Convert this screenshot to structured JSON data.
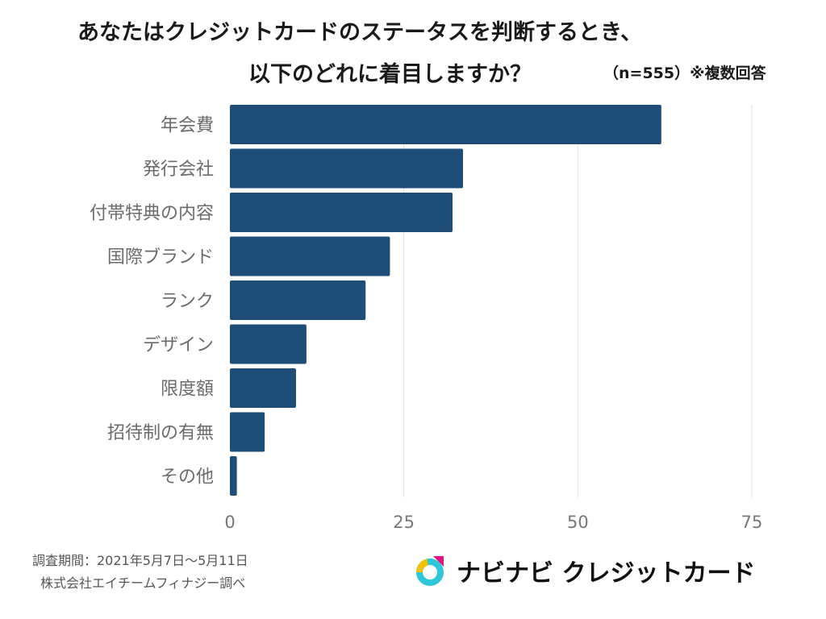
{
  "title": {
    "line1": "あなたはクレジットカードのステータスを判断するとき、",
    "line2": "以下のどれに着目しますか？",
    "note": "（n=555）※複数回答"
  },
  "chart_data": {
    "type": "bar",
    "orientation": "horizontal",
    "categories": [
      "年会費",
      "発行会社",
      "付帯特典の内容",
      "国際ブランド",
      "ランク",
      "デザイン",
      "限度額",
      "招待制の有無",
      "その他"
    ],
    "values": [
      62,
      33.5,
      32,
      23,
      19.5,
      11,
      9.5,
      5,
      1
    ],
    "xlim": [
      0,
      75
    ],
    "xticks": [
      0,
      25,
      50,
      75
    ],
    "grid": true,
    "bar_color": "#1e4d78"
  },
  "footer": {
    "period": "調査期間：2021年5月7日〜5月11日",
    "source": "株式会社エイチームフィナジー調べ"
  },
  "brand": {
    "name": "ナビナビ クレジットカード",
    "icon": "navinavi-logo-icon"
  }
}
